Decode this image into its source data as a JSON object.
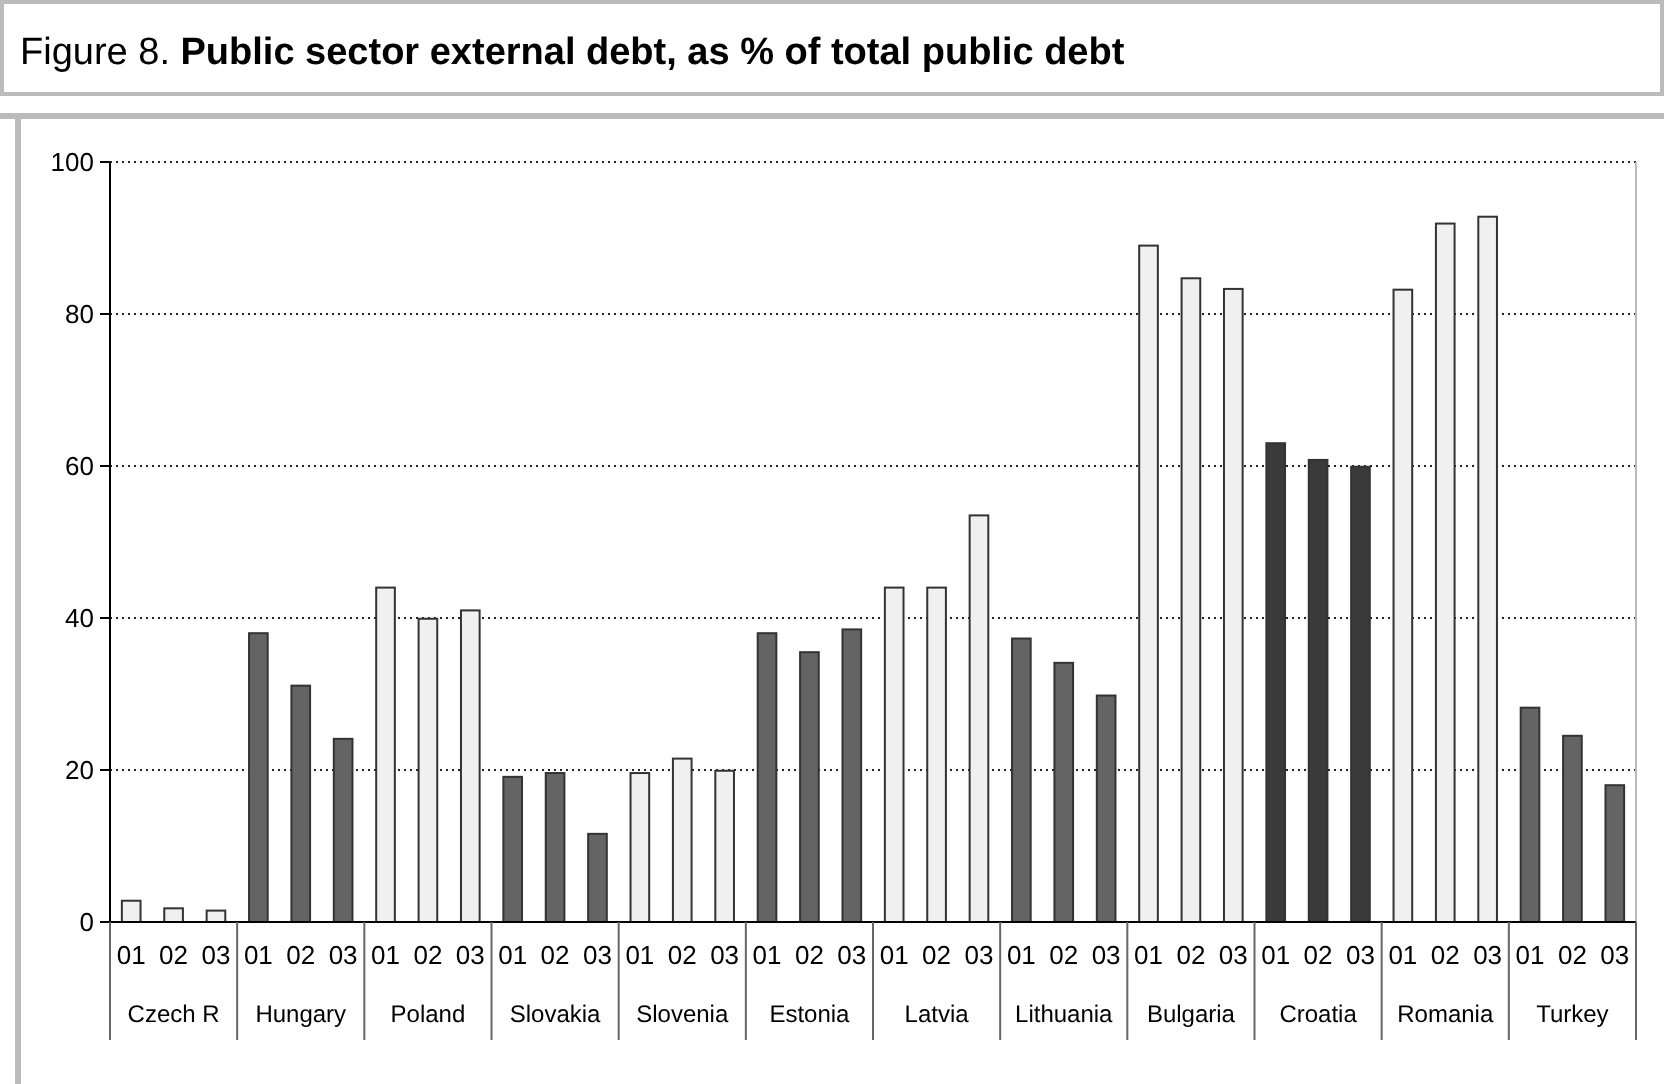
{
  "chart_data": {
    "type": "bar",
    "title": "Figure 8. Public sector external debt, as % of total public debt",
    "categories": [
      "01",
      "02",
      "03",
      "01",
      "02",
      "03",
      "01",
      "02",
      "03",
      "01",
      "02",
      "03",
      "01",
      "02",
      "03",
      "01",
      "02",
      "03",
      "01",
      "02",
      "03",
      "01",
      "02",
      "03",
      "01",
      "02",
      "03",
      "01",
      "02",
      "03",
      "01",
      "02",
      "03",
      "01",
      "02",
      "03"
    ],
    "values": [
      2.8,
      1.8,
      1.5,
      38.0,
      31.1,
      24.1,
      44.0,
      39.9,
      41.0,
      19.1,
      19.6,
      11.6,
      19.6,
      21.5,
      19.9,
      38.0,
      35.5,
      38.5,
      44.0,
      44.0,
      53.5,
      37.3,
      34.1,
      29.8,
      89.0,
      84.7,
      83.3,
      63.0,
      60.8,
      59.9,
      83.2,
      91.9,
      92.8,
      28.2,
      24.5,
      18.0
    ],
    "colors": [
      "#f0f0f0",
      "#f0f0f0",
      "#f0f0f0",
      "#646464",
      "#646464",
      "#646464",
      "#f0f0f0",
      "#f0f0f0",
      "#f0f0f0",
      "#646464",
      "#646464",
      "#646464",
      "#f0f0f0",
      "#f0f0f0",
      "#f0f0f0",
      "#646464",
      "#646464",
      "#646464",
      "#f0f0f0",
      "#f0f0f0",
      "#f0f0f0",
      "#646464",
      "#646464",
      "#646464",
      "#f0f0f0",
      "#f0f0f0",
      "#f0f0f0",
      "#3a3a3a",
      "#3a3a3a",
      "#3a3a3a",
      "#f0f0f0",
      "#f0f0f0",
      "#f0f0f0",
      "#646464",
      "#646464",
      "#646464"
    ],
    "annotations": [
      "Czech R",
      "Hungary",
      "Poland",
      "Slovakia",
      "Slovenia",
      "Estonia",
      "Latvia",
      "Lithuania",
      "Bulgaria",
      "Croatia",
      "Romania",
      "Turkey"
    ],
    "ylim": [
      0,
      100
    ],
    "yticks": [
      0,
      20,
      40,
      60,
      80,
      100
    ],
    "grid": "y"
  }
}
